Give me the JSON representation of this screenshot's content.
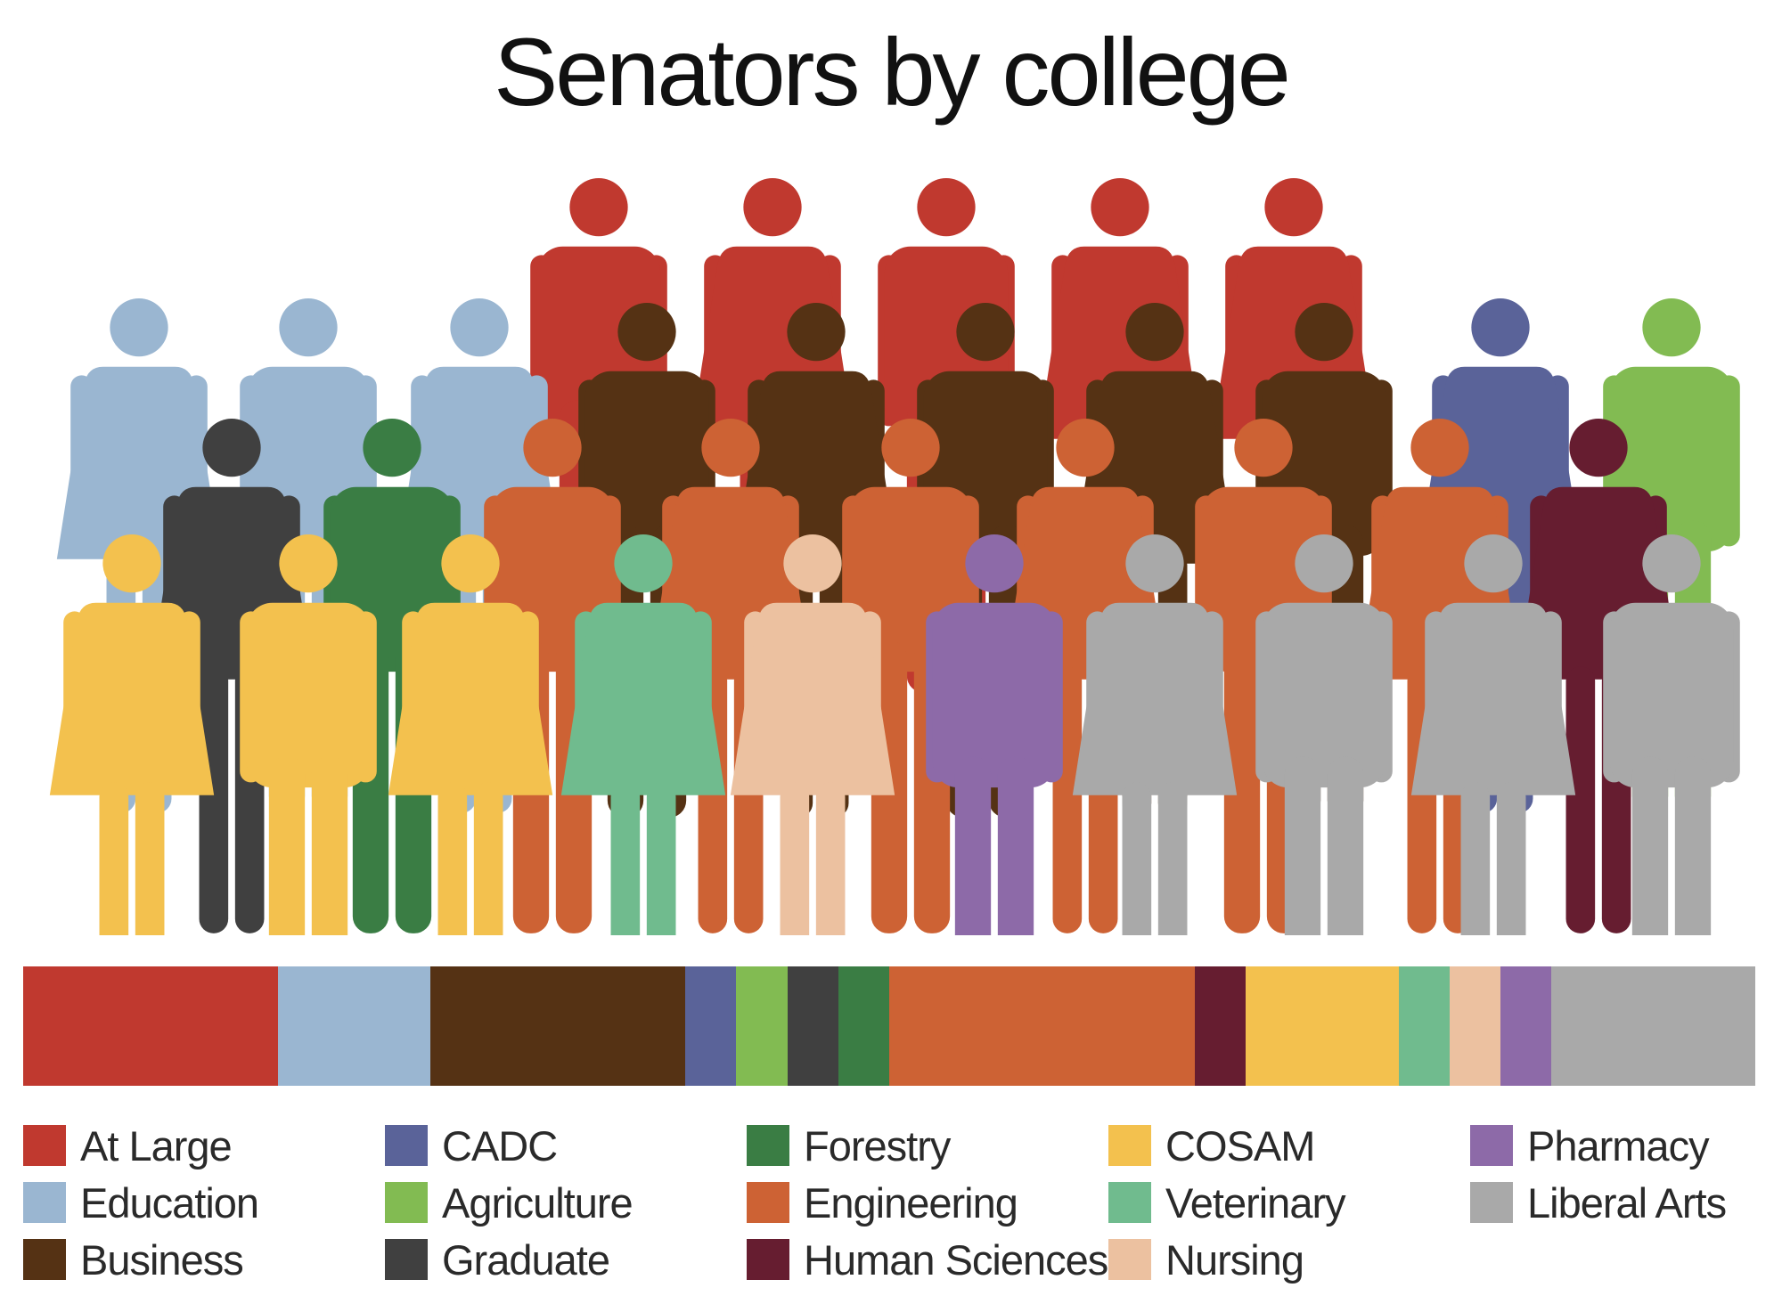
{
  "title": "Senators by college",
  "chart_data": {
    "type": "bar",
    "subtype": "stacked-100-percent-with-pictogram",
    "unit": "senators",
    "categories": [
      "At Large",
      "Education",
      "Business",
      "CADC",
      "Agriculture",
      "Graduate",
      "Forestry",
      "Engineering",
      "Human Sciences",
      "COSAM",
      "Veterinary",
      "Nursing",
      "Pharmacy",
      "Liberal Arts"
    ],
    "values": [
      5,
      3,
      5,
      1,
      1,
      1,
      1,
      6,
      1,
      3,
      1,
      1,
      1,
      4
    ],
    "colors": [
      "#c0392f",
      "#9ab6d1",
      "#553214",
      "#5a6399",
      "#82bb52",
      "#404040",
      "#3a7d44",
      "#cd6234",
      "#661d30",
      "#f3c14e",
      "#70bb8e",
      "#ecc1a0",
      "#8d6aa8",
      "#a9a9a9"
    ],
    "legend": {
      "placement": "bottom",
      "columns": [
        [
          "At Large",
          "Education",
          "Business"
        ],
        [
          "CADC",
          "Agriculture",
          "Graduate"
        ],
        [
          "Forestry",
          "Engineering",
          "Human Sciences"
        ],
        [
          "COSAM",
          "Veterinary",
          "Nursing"
        ],
        [
          "Pharmacy",
          "Liberal Arts"
        ]
      ]
    },
    "pictogram_rows": [
      [
        [
          "At Large",
          "male"
        ],
        [
          "At Large",
          "female"
        ],
        [
          "At Large",
          "male"
        ],
        [
          "At Large",
          "female"
        ],
        [
          "At Large",
          "female"
        ]
      ],
      [
        [
          "Education",
          "female"
        ],
        [
          "Education",
          "male"
        ],
        [
          "Education",
          "female"
        ],
        [
          "CADC",
          "female"
        ],
        [
          "Agriculture",
          "male"
        ]
      ],
      [
        [
          "Business",
          "male"
        ],
        [
          "Business",
          "female"
        ],
        [
          "Business",
          "male"
        ],
        [
          "Business",
          "female"
        ],
        [
          "Business",
          "male"
        ]
      ],
      [
        [
          "Graduate",
          "female"
        ],
        [
          "Forestry",
          "male"
        ],
        [
          "Engineering",
          "male"
        ],
        [
          "Engineering",
          "female"
        ],
        [
          "Engineering",
          "male"
        ],
        [
          "Engineering",
          "female"
        ],
        [
          "Engineering",
          "male"
        ],
        [
          "Engineering",
          "female"
        ],
        [
          "Human Sciences",
          "female"
        ]
      ],
      [
        [
          "COSAM",
          "female"
        ],
        [
          "COSAM",
          "male"
        ],
        [
          "COSAM",
          "female"
        ],
        [
          "Veterinary",
          "female"
        ],
        [
          "Nursing",
          "female"
        ],
        [
          "Pharmacy",
          "male"
        ],
        [
          "Liberal Arts",
          "female"
        ],
        [
          "Liberal Arts",
          "male"
        ],
        [
          "Liberal Arts",
          "female"
        ],
        [
          "Liberal Arts",
          "male"
        ]
      ]
    ]
  }
}
